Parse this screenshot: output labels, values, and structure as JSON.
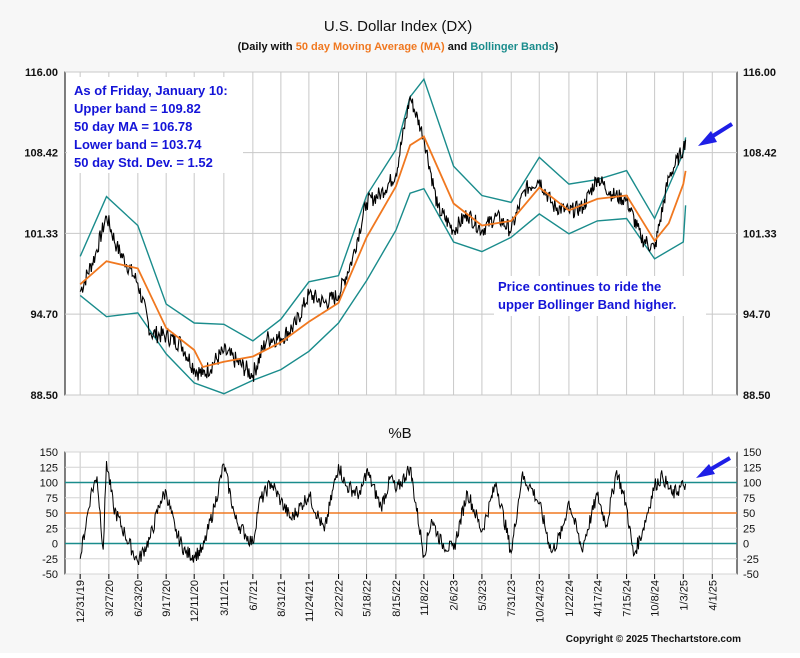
{
  "chart_data": [
    {
      "type": "line",
      "title": "U.S. Dollar Index (DX)",
      "subtitle_parts": [
        "(Daily with ",
        "50 day Moving Average (MA)",
        " and ",
        "Bollinger Bands",
        ")"
      ],
      "ylim": [
        88.5,
        116.0
      ],
      "y_ticks": [
        "116.00",
        "108.42",
        "101.33",
        "94.70",
        "88.50"
      ],
      "y_tick_values": [
        116.0,
        108.42,
        101.33,
        94.7,
        88.5
      ],
      "log_scale": true,
      "grid": true,
      "colors": {
        "price": "#000000",
        "ma": "#f07820",
        "bands": "#1a8c8c"
      },
      "series": [
        {
          "name": "Price",
          "x": [
            "12/31/19",
            "2/15/20",
            "3/20/20",
            "4/20/20",
            "6/23/20",
            "8/1/20",
            "9/17/20",
            "11/1/20",
            "12/11/20",
            "1/6/21",
            "3/11/21",
            "4/20/21",
            "6/7/21",
            "7/20/21",
            "8/31/21",
            "10/15/21",
            "11/24/21",
            "1/10/22",
            "2/22/22",
            "4/5/22",
            "5/18/22",
            "7/1/22",
            "8/15/22",
            "9/27/22",
            "11/8/22",
            "12/20/22",
            "2/6/23",
            "3/20/23",
            "5/3/23",
            "6/15/23",
            "7/31/23",
            "9/10/23",
            "10/24/23",
            "12/5/23",
            "1/22/24",
            "3/5/24",
            "4/17/24",
            "6/1/24",
            "7/15/24",
            "8/27/24",
            "10/8/24",
            "11/20/24",
            "1/3/25",
            "1/10/25"
          ],
          "values": [
            96.5,
            99.5,
            102.8,
            100.2,
            97.2,
            93.2,
            93.0,
            92.4,
            90.5,
            90.0,
            91.8,
            91.0,
            90.0,
            92.8,
            92.8,
            93.9,
            96.3,
            95.6,
            96.2,
            99.2,
            104.0,
            104.8,
            106.5,
            113.6,
            109.8,
            103.5,
            101.6,
            103.0,
            101.6,
            102.8,
            101.6,
            105.1,
            106.0,
            103.7,
            103.2,
            103.6,
            106.2,
            104.7,
            104.2,
            101.0,
            100.0,
            106.2,
            108.8,
            109.6
          ]
        },
        {
          "name": "50 day MA",
          "x": [
            "12/31/19",
            "3/20/20",
            "6/23/20",
            "9/17/20",
            "12/11/20",
            "1/6/21",
            "3/11/21",
            "6/7/21",
            "8/31/21",
            "11/24/21",
            "2/22/22",
            "5/18/22",
            "8/15/22",
            "9/27/22",
            "11/8/22",
            "2/6/23",
            "5/3/23",
            "7/31/23",
            "10/24/23",
            "1/22/24",
            "4/17/24",
            "7/15/24",
            "10/8/24",
            "11/20/24",
            "1/3/25",
            "1/10/25"
          ],
          "values": [
            97.1,
            99.0,
            98.4,
            93.6,
            91.9,
            90.6,
            91.0,
            91.4,
            92.5,
            94.1,
            95.6,
            101.0,
            105.4,
            109.1,
            109.9,
            103.9,
            102.0,
            102.4,
            105.3,
            103.3,
            104.3,
            104.6,
            100.7,
            102.2,
            105.6,
            106.78
          ]
        },
        {
          "name": "Upper band",
          "x": [
            "12/31/19",
            "3/20/20",
            "6/23/20",
            "9/17/20",
            "12/11/20",
            "3/11/21",
            "6/7/21",
            "8/31/21",
            "11/24/21",
            "2/22/22",
            "5/18/22",
            "8/15/22",
            "9/27/22",
            "11/8/22",
            "2/6/23",
            "5/3/23",
            "7/31/23",
            "10/24/23",
            "1/22/24",
            "4/17/24",
            "7/15/24",
            "10/8/24",
            "1/3/25",
            "1/10/25"
          ],
          "values": [
            99.4,
            104.5,
            102.0,
            95.5,
            94.0,
            93.9,
            92.6,
            94.3,
            97.3,
            97.8,
            104.6,
            108.7,
            113.6,
            115.3,
            107.2,
            104.6,
            104.0,
            108.0,
            105.6,
            106.0,
            106.8,
            102.6,
            108.4,
            109.82
          ]
        },
        {
          "name": "Lower band",
          "x": [
            "12/31/19",
            "3/20/20",
            "6/23/20",
            "9/17/20",
            "12/11/20",
            "3/11/21",
            "6/7/21",
            "8/31/21",
            "11/24/21",
            "2/22/22",
            "5/18/22",
            "8/15/22",
            "9/27/22",
            "11/8/22",
            "2/6/23",
            "5/3/23",
            "7/31/23",
            "10/24/23",
            "1/22/24",
            "4/17/24",
            "7/15/24",
            "10/8/24",
            "1/3/25",
            "1/10/25"
          ],
          "values": [
            96.2,
            94.5,
            94.8,
            91.6,
            89.4,
            88.6,
            89.6,
            90.4,
            91.8,
            94.0,
            97.4,
            101.6,
            104.8,
            105.2,
            100.6,
            99.8,
            101.0,
            103.0,
            101.3,
            102.4,
            102.6,
            99.2,
            100.6,
            103.74
          ]
        }
      ],
      "annotations": [
        {
          "lines": [
            "As of Friday, January 10:",
            "Upper band = 109.82",
            "50 day MA = 106.78",
            "Lower band = 103.74",
            "50 day Std. Dev. = 1.52"
          ]
        },
        {
          "lines": [
            "Price continues to ride the",
            "upper Bollinger Band higher."
          ]
        }
      ]
    },
    {
      "type": "line",
      "title": "%B",
      "ylim": [
        -50,
        150
      ],
      "y_ticks": [
        "150",
        "125",
        "100",
        "75",
        "50",
        "25",
        "0",
        "-25",
        "-50"
      ],
      "y_tick_values": [
        150,
        125,
        100,
        75,
        50,
        25,
        0,
        -25,
        -50
      ],
      "reference_lines": [
        100,
        50,
        0
      ],
      "grid": true,
      "series": [
        {
          "name": "%B",
          "x": [
            "12/31/19",
            "2/1/20",
            "2/20/20",
            "3/10/20",
            "3/20/20",
            "4/10/20",
            "5/15/20",
            "6/23/20",
            "7/31/20",
            "8/31/20",
            "9/17/20",
            "10/15/20",
            "11/15/20",
            "12/11/20",
            "1/6/21",
            "2/10/21",
            "3/11/21",
            "4/15/21",
            "5/15/21",
            "6/7/21",
            "6/25/21",
            "8/1/21",
            "8/31/21",
            "10/1/21",
            "11/24/21",
            "1/10/22",
            "2/22/22",
            "3/15/22",
            "4/30/22",
            "5/18/22",
            "7/1/22",
            "8/1/22",
            "8/15/22",
            "9/27/22",
            "11/8/22",
            "12/1/22",
            "1/1/23",
            "2/6/23",
            "3/20/23",
            "5/3/23",
            "6/15/23",
            "7/31/23",
            "9/1/23",
            "10/1/23",
            "10/24/23",
            "12/1/23",
            "1/1/24",
            "1/22/24",
            "3/1/24",
            "4/17/24",
            "5/15/24",
            "6/15/24",
            "7/15/24",
            "8/5/24",
            "9/1/24",
            "10/8/24",
            "11/1/24",
            "12/1/24",
            "1/3/25",
            "1/10/25"
          ],
          "values": [
            -25,
            80,
            110,
            -10,
            135,
            60,
            15,
            -30,
            10,
            70,
            85,
            20,
            -15,
            -20,
            -10,
            60,
            130,
            40,
            15,
            0,
            65,
            100,
            70,
            40,
            80,
            20,
            130,
            95,
            80,
            120,
            60,
            110,
            85,
            125,
            -20,
            40,
            0,
            -10,
            85,
            20,
            100,
            -15,
            110,
            90,
            65,
            -15,
            20,
            70,
            -10,
            80,
            30,
            120,
            60,
            -20,
            20,
            95,
            110,
            80,
            95,
            98
          ]
        }
      ]
    }
  ],
  "x_ticks": [
    "12/31/19",
    "3/27/20",
    "6/23/20",
    "9/17/20",
    "12/11/20",
    "3/11/21",
    "6/7/21",
    "8/31/21",
    "11/24/21",
    "2/22/22",
    "5/18/22",
    "8/15/22",
    "11/8/22",
    "2/6/23",
    "5/3/23",
    "7/31/23",
    "10/24/23",
    "1/22/24",
    "4/17/24",
    "7/15/24",
    "10/8/24",
    "1/3/25",
    "4/1/25"
  ],
  "copyright": "Copyright © 2025 Thechartstore.com",
  "arrow_icon": "blue-arrow-icon"
}
